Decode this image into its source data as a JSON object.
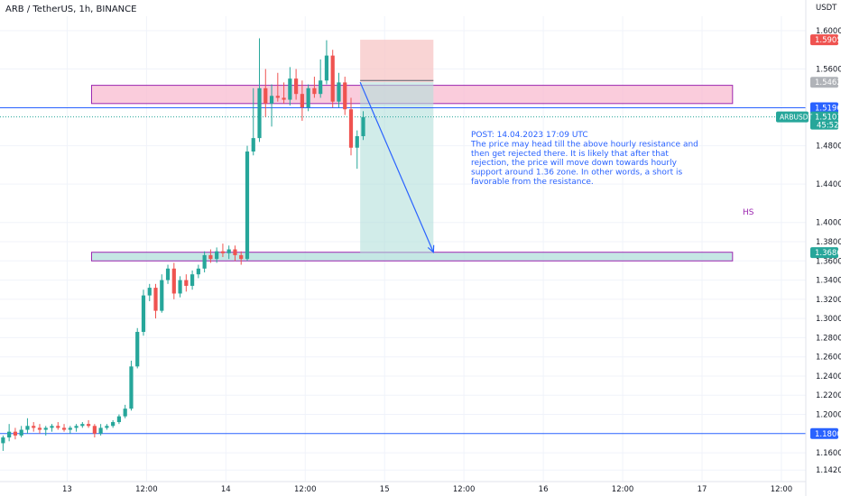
{
  "header": {
    "title": "ARB / TetherUS, 1h, BINANCE",
    "currency": "USDT"
  },
  "colors": {
    "up": "#26a69a",
    "down": "#ef5350",
    "line": "#2962ff",
    "zone_outline": "#9c27b0",
    "resistance_fill": "#f8bbd0",
    "support_fill": "#b2dfdb"
  },
  "chart_data": {
    "type": "candlestick",
    "price_range": [
      1.13,
      1.615
    ],
    "time_range": [
      0,
      132
    ],
    "price_ticks": [
      "1.6000",
      "1.5600",
      "1.4800",
      "1.4400",
      "1.4000",
      "1.3800",
      "1.3600",
      "1.3400",
      "1.3200",
      "1.3000",
      "1.2800",
      "1.2600",
      "1.2400",
      "1.2200",
      "1.2000",
      "1.1600",
      "1.1420"
    ],
    "price_tick_values": [
      1.6,
      1.56,
      1.48,
      1.44,
      1.4,
      1.38,
      1.36,
      1.34,
      1.32,
      1.3,
      1.28,
      1.26,
      1.24,
      1.22,
      1.2,
      1.16,
      1.142
    ],
    "time_ticks": [
      {
        "t": 11,
        "label": "13"
      },
      {
        "t": 24,
        "label": "12:00"
      },
      {
        "t": 37,
        "label": "14"
      },
      {
        "t": 50,
        "label": "12:00"
      },
      {
        "t": 63,
        "label": "15"
      },
      {
        "t": 76,
        "label": "12:00"
      },
      {
        "t": 89,
        "label": "16"
      },
      {
        "t": 102,
        "label": "12:00"
      },
      {
        "t": 115,
        "label": "17"
      },
      {
        "t": 128,
        "label": "12:00"
      }
    ],
    "candles": [
      [
        1.17,
        1.178,
        1.162,
        1.176
      ],
      [
        1.176,
        1.19,
        1.172,
        1.182
      ],
      [
        1.182,
        1.186,
        1.174,
        1.178
      ],
      [
        1.178,
        1.188,
        1.176,
        1.184
      ],
      [
        1.184,
        1.196,
        1.18,
        1.188
      ],
      [
        1.188,
        1.192,
        1.182,
        1.186
      ],
      [
        1.186,
        1.19,
        1.18,
        1.184
      ],
      [
        1.184,
        1.188,
        1.178,
        1.186
      ],
      [
        1.186,
        1.19,
        1.182,
        1.188
      ],
      [
        1.188,
        1.192,
        1.184,
        1.186
      ],
      [
        1.186,
        1.19,
        1.182,
        1.184
      ],
      [
        1.184,
        1.188,
        1.18,
        1.186
      ],
      [
        1.186,
        1.19,
        1.182,
        1.188
      ],
      [
        1.188,
        1.192,
        1.186,
        1.19
      ],
      [
        1.19,
        1.194,
        1.186,
        1.188
      ],
      [
        1.188,
        1.19,
        1.176,
        1.18
      ],
      [
        1.18,
        1.19,
        1.178,
        1.186
      ],
      [
        1.186,
        1.19,
        1.184,
        1.188
      ],
      [
        1.188,
        1.194,
        1.186,
        1.192
      ],
      [
        1.192,
        1.2,
        1.19,
        1.198
      ],
      [
        1.198,
        1.21,
        1.196,
        1.206
      ],
      [
        1.206,
        1.256,
        1.204,
        1.25
      ],
      [
        1.25,
        1.29,
        1.248,
        1.286
      ],
      [
        1.286,
        1.33,
        1.282,
        1.324
      ],
      [
        1.324,
        1.336,
        1.318,
        1.332
      ],
      [
        1.332,
        1.336,
        1.3,
        1.308
      ],
      [
        1.308,
        1.346,
        1.306,
        1.34
      ],
      [
        1.34,
        1.356,
        1.336,
        1.352
      ],
      [
        1.352,
        1.358,
        1.32,
        1.326
      ],
      [
        1.326,
        1.344,
        1.322,
        1.34
      ],
      [
        1.34,
        1.346,
        1.328,
        1.334
      ],
      [
        1.334,
        1.35,
        1.33,
        1.346
      ],
      [
        1.346,
        1.356,
        1.342,
        1.352
      ],
      [
        1.352,
        1.37,
        1.348,
        1.366
      ],
      [
        1.366,
        1.372,
        1.358,
        1.362
      ],
      [
        1.362,
        1.374,
        1.358,
        1.37
      ],
      [
        1.37,
        1.378,
        1.364,
        1.368
      ],
      [
        1.368,
        1.376,
        1.362,
        1.372
      ],
      [
        1.372,
        1.376,
        1.36,
        1.366
      ],
      [
        1.366,
        1.37,
        1.356,
        1.362
      ],
      [
        1.362,
        1.48,
        1.36,
        1.474
      ],
      [
        1.474,
        1.54,
        1.47,
        1.488
      ],
      [
        1.488,
        1.592,
        1.484,
        1.54
      ],
      [
        1.54,
        1.56,
        1.51,
        1.524
      ],
      [
        1.524,
        1.544,
        1.5,
        1.532
      ],
      [
        1.532,
        1.556,
        1.526,
        1.53
      ],
      [
        1.53,
        1.546,
        1.524,
        1.528
      ],
      [
        1.528,
        1.562,
        1.522,
        1.55
      ],
      [
        1.55,
        1.56,
        1.528,
        1.534
      ],
      [
        1.534,
        1.548,
        1.506,
        1.52
      ],
      [
        1.52,
        1.544,
        1.516,
        1.54
      ],
      [
        1.54,
        1.552,
        1.53,
        1.534
      ],
      [
        1.534,
        1.57,
        1.53,
        1.548
      ],
      [
        1.548,
        1.59,
        1.544,
        1.574
      ],
      [
        1.574,
        1.58,
        1.52,
        1.526
      ],
      [
        1.526,
        1.556,
        1.52,
        1.546
      ],
      [
        1.546,
        1.552,
        1.512,
        1.518
      ],
      [
        1.518,
        1.53,
        1.47,
        1.478
      ],
      [
        1.478,
        1.496,
        1.456,
        1.49
      ],
      [
        1.49,
        1.516,
        1.486,
        1.51
      ]
    ],
    "zones": [
      {
        "name": "resistance",
        "from": 1.524,
        "to": 1.543,
        "t_start": 15,
        "t_end": 120
      },
      {
        "name": "support",
        "from": 1.36,
        "to": 1.369,
        "t_start": 15,
        "t_end": 120
      }
    ],
    "horizontal_lines": [
      1.5196,
      1.18
    ],
    "current_price": 1.5101,
    "short_position": {
      "t_start": 59,
      "t_end": 71,
      "entry": 1.5462,
      "stop": 1.5905,
      "target": 1.3686,
      "entry_line": 1.548
    },
    "arrow": {
      "from_t": 59,
      "from_price": 1.5462,
      "to_t": 71,
      "to_price": 1.369
    },
    "price_labels": [
      {
        "text": "1.5905",
        "value": 1.5905,
        "color": "#ef5350"
      },
      {
        "text": "1.5462",
        "value": 1.5462,
        "color": "#b0b3b8"
      },
      {
        "text": "1.5196",
        "value": 1.5196,
        "color": "#2962ff"
      },
      {
        "text": "1.5101",
        "value": 1.5101,
        "color": "#26a69a"
      },
      {
        "text": "1.3686",
        "value": 1.3686,
        "color": "#26a69a"
      },
      {
        "text": "1.1800",
        "value": 1.18,
        "color": "#2962ff"
      }
    ],
    "symbol_tag": "ARBUSDT",
    "countdown": "45:52",
    "zone_tag": "HS",
    "note": [
      "POST: 14.04.2023 17:09 UTC",
      "The price may head till the above hourly resistance and",
      "then get rejected there. It is likely that after that",
      "rejection, the price will move down towards hourly",
      "support around 1.36 zone. In other words, a short is",
      "favorable from the resistance."
    ]
  }
}
